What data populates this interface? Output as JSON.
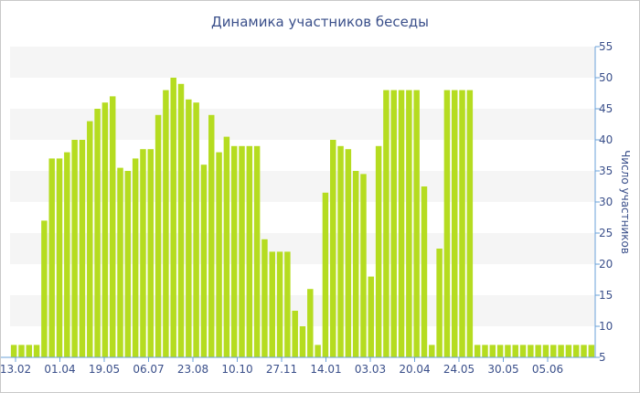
{
  "chart_data": {
    "type": "bar",
    "title": "Динамика участников беседы",
    "xlabel": "",
    "ylabel": "Число участников",
    "ylim": [
      5,
      55
    ],
    "yticks": [
      5,
      10,
      15,
      20,
      25,
      30,
      35,
      40,
      45,
      50,
      55
    ],
    "y_axis_side": "right",
    "grid": "horizontal bands",
    "bar_color": "#b5dc20",
    "band_color": "#f5f5f5",
    "axis_color": "#6aa0d8",
    "text_color": "#3a4f8a",
    "x_tick_labels": [
      "13.02",
      "01.04",
      "19.05",
      "06.07",
      "23.08",
      "10.10",
      "27.11",
      "14.01",
      "03.03",
      "20.04",
      "24.05",
      "30.05",
      "05.06"
    ],
    "values": [
      7,
      7,
      7,
      7,
      27,
      37,
      37,
      38,
      40,
      40,
      43,
      45,
      46,
      47,
      35.5,
      35,
      37,
      38.5,
      38.5,
      44,
      48,
      50,
      49,
      46.5,
      46,
      36,
      44,
      38,
      40.5,
      39,
      39,
      39,
      39,
      24,
      22,
      22,
      22,
      12.5,
      10,
      16,
      7,
      31.5,
      40,
      39,
      38.5,
      35,
      34.5,
      18,
      39,
      48,
      48,
      48,
      48,
      48,
      32.5,
      7,
      22.5,
      48,
      48,
      48,
      48,
      7,
      7,
      7,
      7,
      7,
      7,
      7,
      7,
      7,
      7,
      7,
      7,
      7,
      7,
      7,
      7
    ]
  }
}
